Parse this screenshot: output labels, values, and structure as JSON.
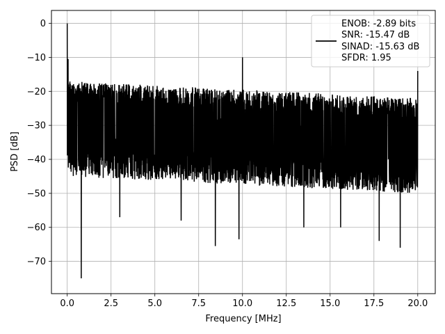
{
  "chart_data": {
    "type": "line",
    "title": "",
    "xlabel": "Frequency [MHz]",
    "ylabel": "PSD [dB]",
    "xlim": [
      -0.9,
      21.0
    ],
    "ylim": [
      -79.5,
      3.8
    ],
    "xticks": [
      0.0,
      2.5,
      5.0,
      7.5,
      10.0,
      12.5,
      15.0,
      17.5,
      20.0
    ],
    "xtick_labels": [
      "0.0",
      "2.5",
      "5.0",
      "7.5",
      "10.0",
      "12.5",
      "15.0",
      "17.5",
      "20.0"
    ],
    "yticks": [
      0,
      -10,
      -20,
      -30,
      -40,
      -50,
      -60,
      -70
    ],
    "ytick_labels": [
      "0",
      "−10",
      "−20",
      "−30",
      "−40",
      "−50",
      "−60",
      "−70"
    ],
    "grid": true,
    "legend_position": "top-right",
    "series": [
      {
        "name": "",
        "color": "#000000",
        "x_range": [
          0.0,
          20.0
        ],
        "noise_band_db": {
          "max_start": -17,
          "max_end": -22,
          "mean_start": -28,
          "mean_end": -33,
          "min_start": -45,
          "min_end": -50
        },
        "features": [
          {
            "x": 0.0,
            "y": 0.0
          },
          {
            "x": 0.05,
            "y": -10.5
          },
          {
            "x": 0.2,
            "y": -36.0
          },
          {
            "x": 0.8,
            "y": -75.0
          },
          {
            "x": 3.0,
            "y": -57.0
          },
          {
            "x": 6.5,
            "y": -58.0
          },
          {
            "x": 8.45,
            "y": -65.5
          },
          {
            "x": 9.8,
            "y": -63.5
          },
          {
            "x": 10.0,
            "y": -10.0
          },
          {
            "x": 13.5,
            "y": -60.0
          },
          {
            "x": 15.6,
            "y": -60.0
          },
          {
            "x": 17.8,
            "y": -64.0
          },
          {
            "x": 19.0,
            "y": -66.0
          },
          {
            "x": 20.0,
            "y": -14.0
          }
        ]
      }
    ],
    "legend_lines": [
      "ENOB: -2.89 bits",
      "SNR: -15.47 dB",
      "SINAD: -15.63 dB",
      "SFDR: 1.95"
    ]
  }
}
